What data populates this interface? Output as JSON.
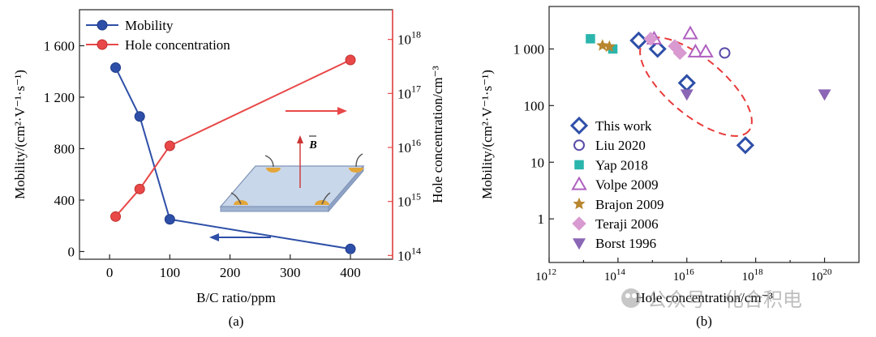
{
  "chart_data": [
    {
      "type": "line",
      "panel_label": "(a)",
      "xlabel": "B/C ratio/ppm",
      "ylabel_left": "Mobility/(cm²·V⁻¹·s⁻¹)",
      "ylabel_right": "Hole concentration/cm⁻³",
      "xlim": [
        -50,
        470
      ],
      "ylim_left": [
        -60,
        1880
      ],
      "ylim_right_log": [
        13.93,
        18.55
      ],
      "x_ticks": [
        0,
        100,
        200,
        300,
        400
      ],
      "x_tick_labels": [
        "0",
        "100",
        "200",
        "300",
        "400"
      ],
      "y_left_ticks": [
        0,
        400,
        800,
        1200,
        1600
      ],
      "y_left_tick_labels": [
        "0",
        "400",
        "800",
        "1 200",
        "1 600"
      ],
      "y_right_ticks_log": [
        14,
        15,
        16,
        17,
        18
      ],
      "y_right_tick_bases": [
        "10",
        "10",
        "10",
        "10",
        "10"
      ],
      "y_right_tick_exps": [
        "14",
        "15",
        "16",
        "17",
        "18"
      ],
      "series": [
        {
          "name": "Mobility",
          "axis": "left",
          "color": "#2e4fa8",
          "x": [
            10,
            50,
            100,
            400
          ],
          "y": [
            1430,
            1050,
            250,
            20
          ]
        },
        {
          "name": "Hole concentration",
          "axis": "right",
          "color": "#e84848",
          "x": [
            10,
            50,
            100,
            400
          ],
          "y_log10": [
            14.72,
            15.23,
            16.03,
            17.62
          ]
        }
      ],
      "inset_label": "B"
    },
    {
      "type": "scatter",
      "panel_label": "(b)",
      "xlabel": "Hole concentration/cm⁻³",
      "ylabel": "Mobility/(cm²·V⁻¹·s⁻¹)",
      "xscale": "log",
      "yscale": "log",
      "xlim_log": [
        12,
        21
      ],
      "ylim_log": [
        -0.77,
        3.75
      ],
      "x_tick_exps": [
        "12",
        "14",
        "16",
        "18",
        "20"
      ],
      "y_ticks_log": [
        0,
        1,
        2,
        3
      ],
      "y_tick_labels": [
        "1",
        "10",
        "100",
        "1 000"
      ],
      "series": [
        {
          "name": "This work",
          "marker": "diamond-open",
          "color": "#2e4fa8",
          "x_log10": [
            14.6,
            15.15,
            16.0,
            17.7
          ],
          "y_log10": [
            3.15,
            3.0,
            2.4,
            1.3
          ]
        },
        {
          "name": "Liu 2020",
          "marker": "circle-open",
          "color": "#5a4aa8",
          "x_log10": [
            17.1
          ],
          "y_log10": [
            2.93
          ]
        },
        {
          "name": "Yap 2018",
          "marker": "square",
          "color": "#2ab5ad",
          "x_log10": [
            13.2,
            13.85
          ],
          "y_log10": [
            3.18,
            3.0
          ]
        },
        {
          "name": "Volpe 2009",
          "marker": "triangle-open",
          "color": "#b060c0",
          "x_log10": [
            15.05,
            16.1,
            16.25,
            16.55
          ],
          "y_log10": [
            3.18,
            3.27,
            2.95,
            2.95
          ]
        },
        {
          "name": "Brajon 2009",
          "marker": "star",
          "color": "#b8862e",
          "x_log10": [
            13.55,
            13.75
          ],
          "y_log10": [
            3.06,
            3.04
          ]
        },
        {
          "name": "Teraji 2006",
          "marker": "diamond",
          "color": "#d89ad0",
          "x_log10": [
            14.95,
            15.65,
            15.8
          ],
          "y_log10": [
            3.18,
            3.05,
            2.93
          ]
        },
        {
          "name": "Borst 1996",
          "marker": "triangle-down",
          "color": "#8a66b5",
          "x_log10": [
            16.0,
            20.0
          ],
          "y_log10": [
            2.2,
            2.2
          ]
        }
      ]
    }
  ],
  "watermark": "公众号 · 化合积电",
  "colors": {
    "mobility": "#2e4fa8",
    "hole": "#e84848",
    "ellipse": "#e83a3a"
  }
}
